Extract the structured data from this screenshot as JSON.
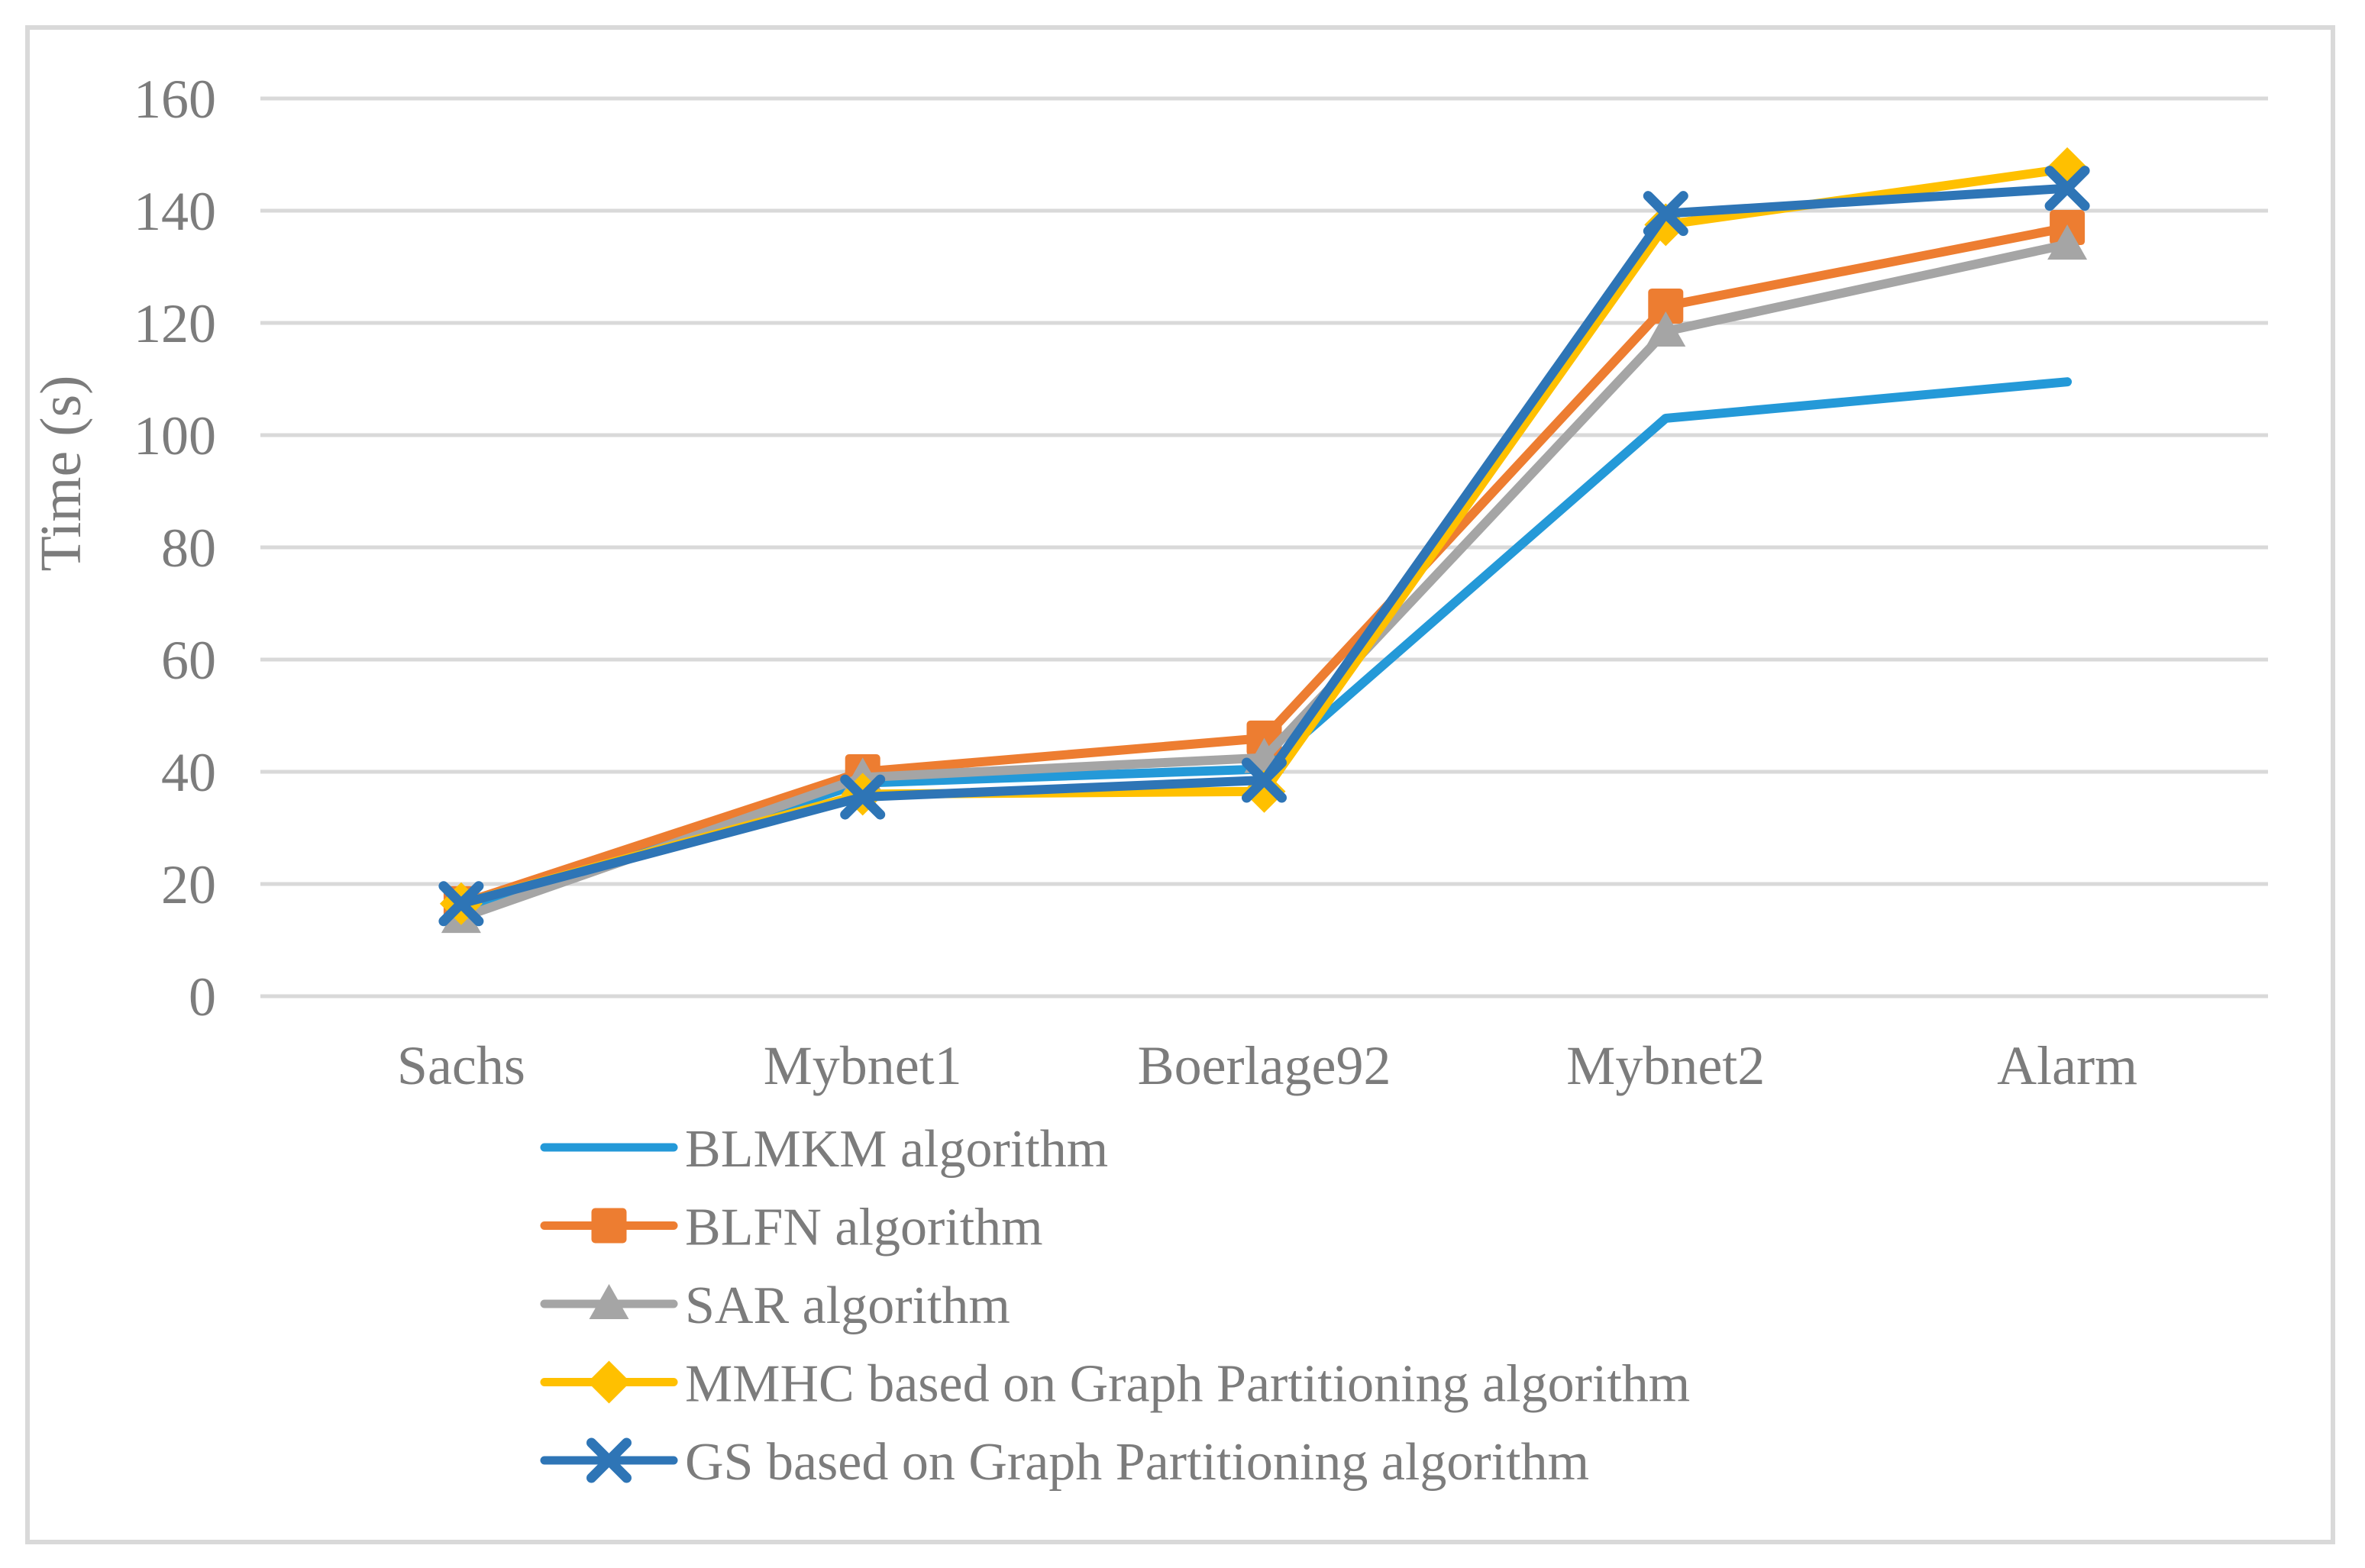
{
  "figure": {
    "kind": "line-chart-figure",
    "background": "#ffffff"
  },
  "chart_data": {
    "type": "line",
    "title": "",
    "xlabel": "",
    "ylabel": "Time (s)",
    "ylim": [
      0,
      160
    ],
    "ytick_step": 20,
    "yticks": [
      0,
      20,
      40,
      60,
      80,
      100,
      120,
      140,
      160
    ],
    "grid": true,
    "legend_position": "bottom-left",
    "categories": [
      "Sachs",
      "Mybnet1",
      "Boerlage92",
      "Mybnet2",
      "Alarm"
    ],
    "series": [
      {
        "name": "BLMKM algorithm",
        "color": "#2499D8",
        "marker": "none",
        "values": [
          15.5,
          38,
          40.5,
          103,
          109.5
        ]
      },
      {
        "name": "BLFN algorithm",
        "color": "#ED7D31",
        "marker": "square",
        "values": [
          16.5,
          40,
          46,
          123,
          137
        ]
      },
      {
        "name": "SAR algorithm",
        "color": "#A5A5A5",
        "marker": "triangle",
        "values": [
          14,
          39,
          42.5,
          118.5,
          134
        ]
      },
      {
        "name": "MMHC based on Graph Partitioning algorithm",
        "color": "#FFC000",
        "marker": "diamond",
        "values": [
          16.5,
          36,
          36.5,
          137.5,
          147.5
        ]
      },
      {
        "name": "GS based on Graph Partitioning algorithm",
        "color": "#2E75B6",
        "marker": "x",
        "values": [
          16.5,
          35.5,
          38.5,
          139.5,
          144
        ]
      }
    ],
    "colors": {
      "grid": "#D9D9D9",
      "frame": "#D9D9D9",
      "text": "#7C7C7C"
    }
  }
}
